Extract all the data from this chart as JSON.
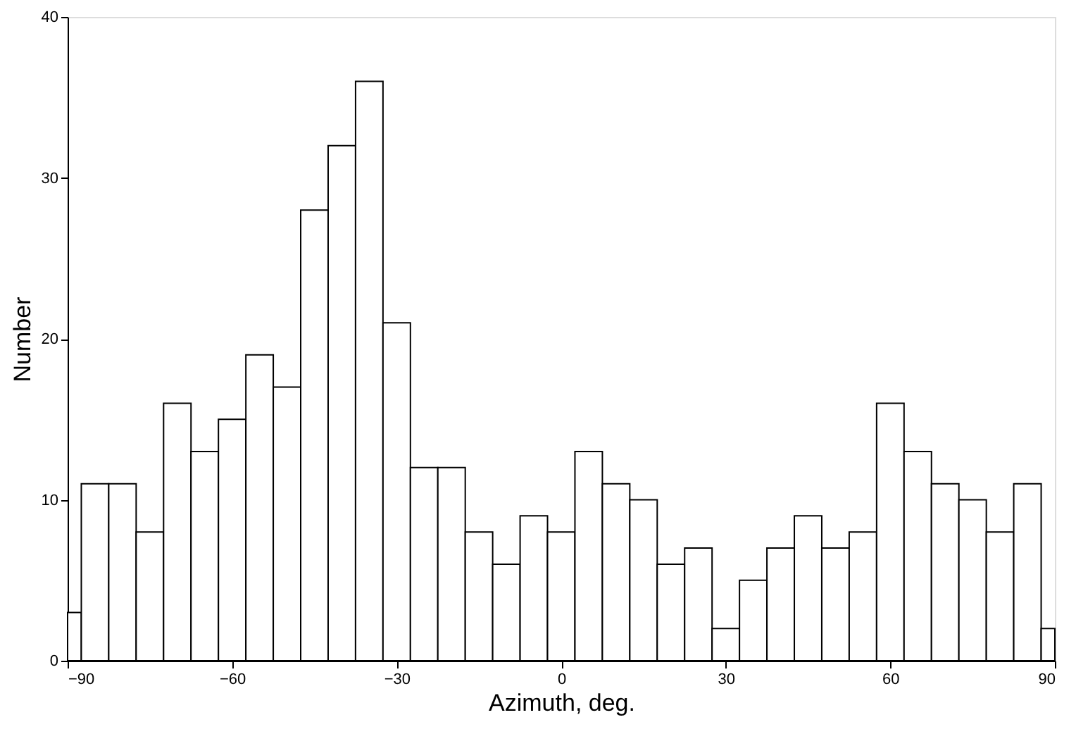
{
  "chart_data": {
    "type": "histogram",
    "xlabel": "Azimuth, deg.",
    "ylabel": "Number",
    "bins": [
      -90,
      -87.5,
      -82.5,
      -77.5,
      -72.5,
      -67.5,
      -62.5,
      -57.5,
      -52.5,
      -47.5,
      -42.5,
      -37.5,
      -32.5,
      -27.5,
      -22.5,
      -17.5,
      -12.5,
      -7.5,
      -2.5,
      2.5,
      7.5,
      12.5,
      17.5,
      22.5,
      27.5,
      32.5,
      37.5,
      42.5,
      47.5,
      52.5,
      57.5,
      62.5,
      67.5,
      72.5,
      77.5,
      82.5,
      87.5,
      90
    ],
    "values": [
      3,
      11,
      11,
      8,
      16,
      13,
      15,
      19,
      17,
      28,
      32,
      36,
      21,
      12,
      12,
      8,
      6,
      9,
      8,
      13,
      11,
      10,
      6,
      7,
      2,
      5,
      7,
      9,
      7,
      8,
      16,
      13,
      11,
      10,
      8,
      11,
      2
    ],
    "color": "#ffffff",
    "xlim": [
      -90,
      90
    ],
    "xticks": [
      -90,
      -60,
      -30,
      0,
      30,
      60,
      90
    ],
    "ylim": [
      0,
      40
    ],
    "yticks": [
      0,
      10,
      20,
      30,
      40
    ],
    "grid": false
  }
}
